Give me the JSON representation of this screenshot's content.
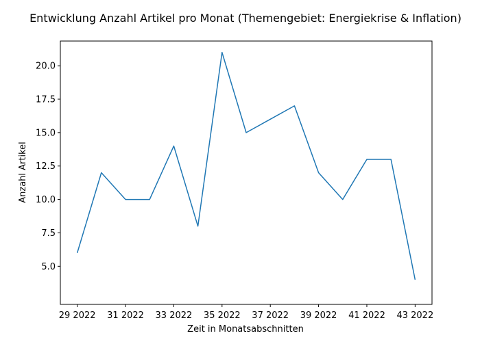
{
  "chart_data": {
    "type": "line",
    "title": "Entwicklung Anzahl Artikel pro Monat (Themengebiet: Energiekrise & Inflation)",
    "xlabel": "Zeit in Monatsabschnitten",
    "ylabel": "Anzahl Artikel",
    "x": [
      29,
      30,
      31,
      32,
      33,
      34,
      35,
      36,
      37,
      38,
      39,
      40,
      41,
      42,
      43
    ],
    "x_tick_values": [
      29,
      31,
      33,
      35,
      37,
      39,
      41,
      43
    ],
    "x_tick_labels": [
      "29 2022",
      "31 2022",
      "33 2022",
      "35 2022",
      "37 2022",
      "39 2022",
      "41 2022",
      "43 2022"
    ],
    "series": [
      {
        "name": "Anzahl Artikel",
        "color": "#1f77b4",
        "values": [
          6,
          12,
          10,
          10,
          14,
          8,
          21,
          15,
          16,
          17,
          12,
          10,
          13,
          13,
          4
        ]
      }
    ],
    "y_tick_values": [
      5.0,
      7.5,
      10.0,
      12.5,
      15.0,
      17.5,
      20.0
    ],
    "y_tick_labels": [
      "5.0",
      "7.5",
      "10.0",
      "12.5",
      "15.0",
      "17.5",
      "20.0"
    ],
    "xlim": [
      28.3,
      43.7
    ],
    "ylim": [
      2.15,
      21.85
    ],
    "grid": false,
    "legend": "none"
  }
}
